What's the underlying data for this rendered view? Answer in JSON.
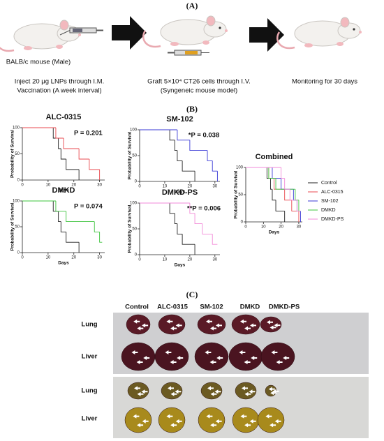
{
  "panel_a": {
    "label": "(A)",
    "mouse_label": "BALB/c mouse (Male)",
    "steps": [
      {
        "lines": [
          "Inject 20 μg LNPs through I.M.",
          "Vaccination (A week interval)"
        ]
      },
      {
        "lines": [
          "Graft 5×10⁴ CT26 cells through I.V.",
          "(Syngeneic mouse model)"
        ]
      },
      {
        "lines": [
          "Monitoring for 30 days"
        ]
      }
    ]
  },
  "panel_b": {
    "label": "(B)"
  },
  "chart_data": [
    {
      "type": "survival",
      "title": "ALC-0315",
      "annotation": "P = 0.201",
      "xlabel": "Days",
      "ylabel": "Probability of Survival",
      "xlim": [
        0,
        32
      ],
      "xticks": [
        0,
        10,
        20,
        30
      ],
      "ylim": [
        0,
        100
      ],
      "yticks": [
        0,
        50,
        100
      ],
      "series": [
        {
          "color": "#222222",
          "x": [
            0,
            12,
            14,
            15,
            17,
            22
          ],
          "values": [
            100,
            80,
            60,
            40,
            20,
            0
          ]
        },
        {
          "color": "#e8494f",
          "x": [
            0,
            13,
            16,
            22,
            26,
            30
          ],
          "values": [
            100,
            80,
            60,
            40,
            20,
            0
          ]
        }
      ]
    },
    {
      "type": "survival",
      "title": "SM-102",
      "annotation": "*P = 0.038",
      "xlabel": "Days",
      "ylabel": "Probability of Survival",
      "xlim": [
        0,
        32
      ],
      "xticks": [
        0,
        10,
        20,
        30
      ],
      "ylim": [
        0,
        100
      ],
      "yticks": [
        0,
        50,
        100
      ],
      "series": [
        {
          "color": "#222222",
          "x": [
            0,
            12,
            14,
            15,
            17,
            22
          ],
          "values": [
            100,
            80,
            60,
            40,
            20,
            0
          ]
        },
        {
          "color": "#3a3ad6",
          "x": [
            0,
            15,
            20,
            27,
            29,
            31
          ],
          "values": [
            100,
            80,
            60,
            40,
            20,
            0
          ]
        }
      ]
    },
    {
      "type": "survival",
      "title": "DMKD",
      "annotation": "P = 0.074",
      "xlabel": "Days",
      "ylabel": "Probability of Survival",
      "xlim": [
        0,
        32
      ],
      "xticks": [
        0,
        10,
        20,
        30
      ],
      "ylim": [
        0,
        100
      ],
      "yticks": [
        0,
        50,
        100
      ],
      "series": [
        {
          "color": "#222222",
          "x": [
            0,
            12,
            14,
            15,
            17,
            22
          ],
          "values": [
            100,
            80,
            60,
            40,
            20,
            0
          ]
        },
        {
          "color": "#3ec43e",
          "x": [
            0,
            13,
            17,
            28,
            30,
            31
          ],
          "values": [
            100,
            80,
            60,
            40,
            20,
            20
          ]
        }
      ]
    },
    {
      "type": "survival",
      "title": "DMKD-PS",
      "annotation": "**P = 0.006",
      "xlabel": "Days",
      "ylabel": "Probability of Survival",
      "xlim": [
        0,
        32
      ],
      "xticks": [
        0,
        10,
        20,
        30
      ],
      "ylim": [
        0,
        100
      ],
      "yticks": [
        0,
        50,
        100
      ],
      "series": [
        {
          "color": "#222222",
          "x": [
            0,
            12,
            14,
            15,
            17,
            22
          ],
          "values": [
            100,
            80,
            60,
            40,
            20,
            0
          ]
        },
        {
          "color": "#f28ad8",
          "x": [
            0,
            20,
            22,
            25,
            29,
            31
          ],
          "values": [
            100,
            80,
            60,
            40,
            20,
            20
          ]
        }
      ]
    },
    {
      "type": "survival",
      "title": "Combined",
      "xlabel": "Days",
      "ylabel": "Probability of Survival",
      "xlim": [
        0,
        32
      ],
      "xticks": [
        0,
        10,
        20,
        30
      ],
      "ylim": [
        0,
        100
      ],
      "yticks": [
        0,
        50,
        100
      ],
      "legend": "right",
      "series": [
        {
          "name": "Control",
          "color": "#222222",
          "x": [
            0,
            12,
            14,
            15,
            17,
            22
          ],
          "values": [
            100,
            80,
            60,
            40,
            20,
            0
          ]
        },
        {
          "name": "ALC-0315",
          "color": "#e8494f",
          "x": [
            0,
            13,
            16,
            22,
            26,
            30
          ],
          "values": [
            100,
            80,
            60,
            40,
            20,
            0
          ]
        },
        {
          "name": "SM-102",
          "color": "#3a3ad6",
          "x": [
            0,
            15,
            20,
            27,
            29,
            31
          ],
          "values": [
            100,
            80,
            60,
            40,
            20,
            0
          ]
        },
        {
          "name": "DMKD",
          "color": "#3ec43e",
          "x": [
            0,
            13,
            17,
            28,
            30,
            31
          ],
          "values": [
            100,
            80,
            60,
            40,
            20,
            20
          ]
        },
        {
          "name": "DMKD-PS",
          "color": "#f28ad8",
          "x": [
            0,
            20,
            22,
            25,
            29,
            31
          ],
          "values": [
            100,
            80,
            60,
            40,
            20,
            20
          ]
        }
      ]
    }
  ],
  "panel_c": {
    "label": "(C)",
    "columns": [
      "Control",
      "ALC-0315",
      "SM-102",
      "DMKD",
      "DMKD-PS"
    ],
    "rows": [
      "Lung",
      "Liver",
      "Lung",
      "Liver"
    ]
  }
}
